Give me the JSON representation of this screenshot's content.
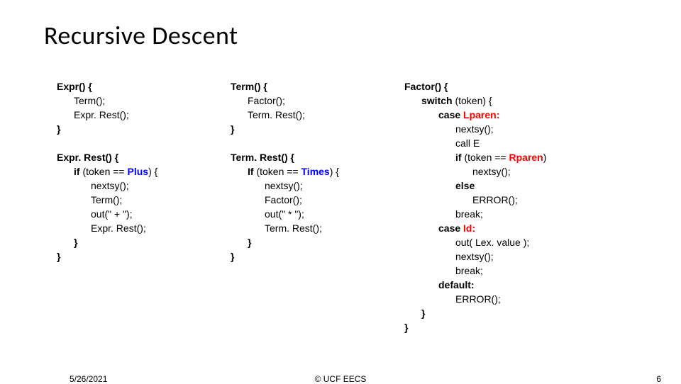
{
  "title": "Recursive Descent",
  "col1": {
    "expr_head": "Expr() {",
    "expr_l1": "Term();",
    "expr_l2": "Expr. Rest();",
    "expr_close": "}",
    "exprrest_head": "Expr. Rest() {",
    "exprrest_if_pre": "if",
    "exprrest_if_mid": " (token == ",
    "exprrest_if_plus": "Plus",
    "exprrest_if_post": ") {",
    "exprrest_l1": "nextsy();",
    "exprrest_l2": "Term();",
    "exprrest_l3": "out(\" + \");",
    "exprrest_l4": "Expr. Rest();",
    "exprrest_inner_close": "}",
    "exprrest_close": "}"
  },
  "col2": {
    "term_head": "Term() {",
    "term_l1": "Factor();",
    "term_l2": "Term. Rest();",
    "term_close": "}",
    "termrest_head": "Term. Rest() {",
    "termrest_if_pre": "If",
    "termrest_if_mid": " (token == ",
    "termrest_if_times": "Times",
    "termrest_if_post": ") {",
    "termrest_l1": "nextsy();",
    "termrest_l2": "Factor();",
    "termrest_l3": "out(\" * \");",
    "termrest_l4": "Term. Rest();",
    "termrest_inner_close": "}",
    "termrest_close": "}"
  },
  "col3": {
    "factor_head": "Factor() {",
    "switch_pre": "switch",
    "switch_post": " (token) {",
    "case1_pre": "case ",
    "case1_lparen": "Lparen:",
    "case1_l1": "nextsy();",
    "case1_l2": "call E",
    "case1_if_pre": "if",
    "case1_if_mid": " (token == ",
    "case1_if_rparen": "Rparen",
    "case1_if_post": ")",
    "case1_l3": "nextsy();",
    "case1_else": "else",
    "case1_l4": "ERROR();",
    "case1_break": "break;",
    "case2_pre": "case ",
    "case2_id": "Id:",
    "case2_l1": "out( Lex. value );",
    "case2_l2": "nextsy();",
    "case2_break": "break;",
    "default_label": "default:",
    "default_l1": "ERROR();",
    "switch_close": "}",
    "factor_close": "}"
  },
  "footer": {
    "date": "5/26/2021",
    "copyright": "© UCF EECS",
    "page": "6"
  },
  "style": {
    "background_color": "#ffffff",
    "text_color": "#000000",
    "keyword_blue": "#0000ff",
    "keyword_red": "#ff0000",
    "title_fontsize": 36,
    "body_fontsize": 14,
    "footer_fontsize": 12,
    "line_height": 20
  }
}
